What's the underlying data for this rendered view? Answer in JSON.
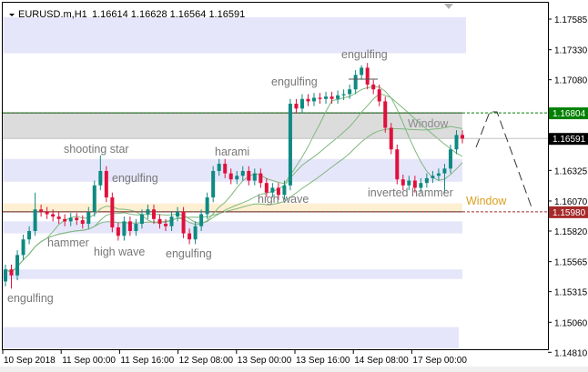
{
  "header": {
    "symbol": "EURUSD.m,H1",
    "ohlc": "1.16614 1.16628 1.16564 1.16591"
  },
  "colors": {
    "bull": "#0e8a82",
    "bear": "#e0103c",
    "zone": "#e6e6fa",
    "window_gray": "#dcdcdc",
    "window_orange": "#fdf0d2",
    "ma": "#7fb87f",
    "resistance": "#008000",
    "support": "#a52a2a",
    "last": "#000000"
  },
  "chart_data": {
    "type": "candlestick",
    "symbol": "EURUSD.m",
    "timeframe": "H1",
    "ylim": [
      1.148,
      1.177
    ],
    "y_ticks": [
      "1.17585",
      "1.17330",
      "1.17080",
      "1.16591",
      "1.16325",
      "1.16070",
      "1.15820",
      "1.15565",
      "1.15315",
      "1.15060",
      "1.14810"
    ],
    "x_ticks": [
      "10 Sep 2018",
      "11 Sep 00:00",
      "11 Sep 16:00",
      "12 Sep 08:00",
      "13 Sep 00:00",
      "13 Sep 16:00",
      "14 Sep 08:00",
      "17 Sep 00:00"
    ],
    "closes": [
      1.155,
      1.1545,
      1.1562,
      1.1575,
      1.1582,
      1.16,
      1.1598,
      1.1596,
      1.1594,
      1.1592,
      1.159,
      1.1593,
      1.1591,
      1.1588,
      1.1598,
      1.162,
      1.1632,
      1.161,
      1.1585,
      1.1578,
      1.159,
      1.1582,
      1.1588,
      1.1596,
      1.16,
      1.1592,
      1.1588,
      1.1586,
      1.1594,
      1.1598,
      1.158,
      1.1575,
      1.1586,
      1.1596,
      1.161,
      1.1632,
      1.1638,
      1.163,
      1.1625,
      1.1628,
      1.1632,
      1.1624,
      1.163,
      1.1622,
      1.1614,
      1.1618,
      1.1612,
      1.162,
      1.1688,
      1.1684,
      1.1692,
      1.169,
      1.1693,
      1.1692,
      1.1694,
      1.1692,
      1.1695,
      1.1696,
      1.17,
      1.1712,
      1.1718,
      1.1704,
      1.17,
      1.169,
      1.1668,
      1.165,
      1.1625,
      1.162,
      1.1624,
      1.1618,
      1.1622,
      1.1626,
      1.1628,
      1.163,
      1.1634,
      1.165,
      1.1662,
      1.1659
    ],
    "zones": [
      [
        1.173,
        1.176
      ],
      [
        1.1623,
        1.1642
      ],
      [
        1.158,
        1.159
      ],
      [
        1.1542,
        1.155
      ],
      [
        1.1484,
        1.1502
      ]
    ],
    "windows": [
      {
        "label": "Window",
        "range": [
          1.16591,
          1.16804
        ],
        "color": "gray"
      },
      {
        "label": "Window",
        "range": [
          1.1598,
          1.1605
        ],
        "color": "orange"
      }
    ],
    "price_labels": [
      {
        "value": "1.16804",
        "kind": "resistance"
      },
      {
        "value": "1.16591",
        "kind": "last"
      },
      {
        "value": "1.15980",
        "kind": "support"
      }
    ],
    "patterns": [
      "engulfing",
      "engulfing",
      "shooting star",
      "harami",
      "engulfing",
      "high wave",
      "inverted hammer",
      "hammer",
      "high wave",
      "engulfing",
      "engulfing"
    ]
  }
}
